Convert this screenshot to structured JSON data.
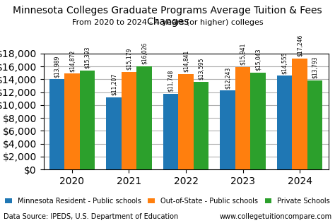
{
  "chart_data": {
    "type": "bar",
    "title": "Minnesota Colleges Graduate Programs Average Tuition & Fees Changes",
    "subtitle": "From 2020 to 2024 - 4 years (or higher) colleges",
    "categories": [
      "2020",
      "2021",
      "2022",
      "2023",
      "2024"
    ],
    "series": [
      {
        "name": "Minnesota Resident - Public schools",
        "values": [
          13989,
          11207,
          11748,
          12243,
          14555
        ],
        "value_labels": [
          "$13,989",
          "$11,207",
          "$11,748",
          "$12,243",
          "$14,555"
        ]
      },
      {
        "name": "Out-of-State - Public schools",
        "values": [
          14872,
          15179,
          14841,
          15941,
          17246
        ],
        "value_labels": [
          "$14,872",
          "$15,179",
          "$14,841",
          "$15,941",
          "$17,246"
        ]
      },
      {
        "name": "Private Schools",
        "values": [
          15393,
          16026,
          13595,
          15043,
          13793
        ],
        "value_labels": [
          "$15,393",
          "$16,026",
          "$13,595",
          "$15,043",
          "$13,793"
        ]
      }
    ],
    "ylim": [
      0,
      18000
    ],
    "yticks": [
      {
        "value": 0,
        "label": "$0"
      },
      {
        "value": 2000,
        "label": "$2,000"
      },
      {
        "value": 4000,
        "label": "$4,000"
      },
      {
        "value": 6000,
        "label": "$6,000"
      },
      {
        "value": 8000,
        "label": "$8,000"
      },
      {
        "value": 10000,
        "label": "$10,000"
      },
      {
        "value": 12000,
        "label": "$12,000"
      },
      {
        "value": 14000,
        "label": "$14,000"
      },
      {
        "value": 16000,
        "label": "$16,000"
      },
      {
        "value": 18000,
        "label": "$18,000"
      }
    ],
    "grid": true,
    "legend": "lower center",
    "data_labels": true,
    "annotations": [
      "Data Source: IPEDS, U.S. Department of Education",
      "www.collegetuitioncompare.com"
    ]
  }
}
